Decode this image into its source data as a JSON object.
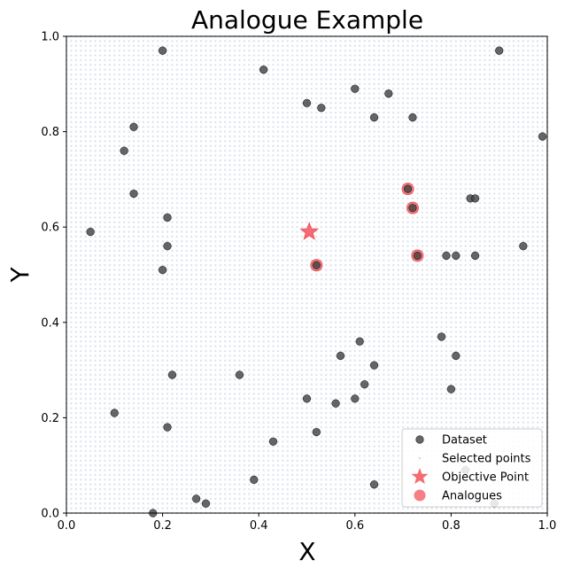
{
  "chart_data": {
    "type": "scatter",
    "title": "Analogue Example",
    "xlabel": "X",
    "ylabel": "Y",
    "xlim": [
      0.0,
      1.0
    ],
    "ylim": [
      0.0,
      1.0
    ],
    "xticks": [
      "0.0",
      "0.2",
      "0.4",
      "0.6",
      "0.8",
      "1.0"
    ],
    "yticks": [
      "0.0",
      "0.2",
      "0.4",
      "0.6",
      "0.8",
      "1.0"
    ],
    "grid": false,
    "legend_position": "lower-right",
    "selected_points": {
      "name": "Selected points",
      "color": "#b0c4de",
      "x_range": [
        0.0,
        1.0
      ],
      "y_range": [
        0.0,
        1.0
      ],
      "spacing": 0.01
    },
    "series": [
      {
        "name": "Dataset",
        "color": "#404040",
        "points": [
          [
            0.2,
            0.97
          ],
          [
            0.41,
            0.93
          ],
          [
            0.9,
            0.97
          ],
          [
            0.6,
            0.89
          ],
          [
            0.67,
            0.88
          ],
          [
            0.5,
            0.86
          ],
          [
            0.53,
            0.85
          ],
          [
            0.64,
            0.83
          ],
          [
            0.72,
            0.83
          ],
          [
            0.14,
            0.81
          ],
          [
            0.99,
            0.79
          ],
          [
            0.12,
            0.76
          ],
          [
            0.71,
            0.68
          ],
          [
            0.14,
            0.67
          ],
          [
            0.72,
            0.64
          ],
          [
            0.84,
            0.66
          ],
          [
            0.85,
            0.66
          ],
          [
            0.21,
            0.62
          ],
          [
            0.05,
            0.59
          ],
          [
            0.21,
            0.56
          ],
          [
            0.95,
            0.56
          ],
          [
            0.73,
            0.54
          ],
          [
            0.79,
            0.54
          ],
          [
            0.81,
            0.54
          ],
          [
            0.85,
            0.54
          ],
          [
            0.2,
            0.51
          ],
          [
            0.52,
            0.52
          ],
          [
            0.61,
            0.36
          ],
          [
            0.78,
            0.37
          ],
          [
            0.57,
            0.33
          ],
          [
            0.81,
            0.33
          ],
          [
            0.64,
            0.31
          ],
          [
            0.36,
            0.29
          ],
          [
            0.22,
            0.29
          ],
          [
            0.62,
            0.27
          ],
          [
            0.8,
            0.26
          ],
          [
            0.5,
            0.24
          ],
          [
            0.6,
            0.24
          ],
          [
            0.56,
            0.23
          ],
          [
            0.1,
            0.21
          ],
          [
            0.21,
            0.18
          ],
          [
            0.52,
            0.17
          ],
          [
            0.43,
            0.15
          ],
          [
            0.83,
            0.09
          ],
          [
            0.39,
            0.07
          ],
          [
            0.64,
            0.06
          ],
          [
            0.27,
            0.03
          ],
          [
            0.29,
            0.02
          ],
          [
            0.89,
            0.02
          ],
          [
            0.18,
            0.0
          ]
        ]
      },
      {
        "name": "Objective Point",
        "color": "#f2545b",
        "points": [
          [
            0.505,
            0.59
          ]
        ]
      },
      {
        "name": "Analogues",
        "color": "#f2545b",
        "points": [
          [
            0.71,
            0.68
          ],
          [
            0.72,
            0.64
          ],
          [
            0.73,
            0.54
          ],
          [
            0.52,
            0.52
          ]
        ]
      }
    ]
  }
}
